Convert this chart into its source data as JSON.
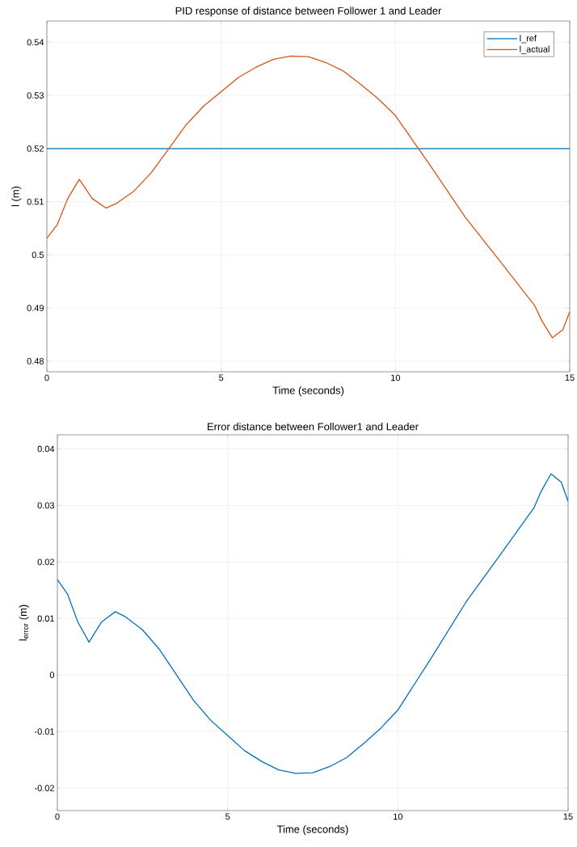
{
  "chart_data": [
    {
      "type": "line",
      "title": "PID response of distance between Follower 1 and Leader",
      "xlabel": "Time (seconds)",
      "ylabel": "l (m)",
      "xlim": [
        0,
        15
      ],
      "xticks": [
        0,
        5,
        10,
        15
      ],
      "ylim": [
        0.478,
        0.544
      ],
      "yticks": [
        0.48,
        0.49,
        0.5,
        0.51,
        0.52,
        0.53,
        0.54
      ],
      "grid": true,
      "legend": "top right",
      "series": [
        {
          "name": "l_ref",
          "color": "#0072bd",
          "x": [
            0,
            15
          ],
          "values": [
            0.52,
            0.52
          ]
        },
        {
          "name": "l_actual",
          "color": "#d95319",
          "x": [
            0,
            0.3,
            0.6,
            0.93,
            1.3,
            1.7,
            2,
            2.5,
            3,
            3.5,
            4,
            4.5,
            5,
            5.5,
            6,
            6.5,
            7,
            7.5,
            8,
            8.5,
            9,
            9.5,
            10,
            11,
            12,
            13,
            14,
            14.2,
            14.5,
            14.8,
            15
          ],
          "values": [
            0.5031,
            0.5057,
            0.5106,
            0.5142,
            0.5106,
            0.5088,
            0.5097,
            0.512,
            0.5155,
            0.52,
            0.5245,
            0.528,
            0.5307,
            0.5334,
            0.5353,
            0.5368,
            0.5374,
            0.5373,
            0.5362,
            0.5346,
            0.5321,
            0.5294,
            0.5262,
            0.5168,
            0.5071,
            0.4988,
            0.4904,
            0.4876,
            0.4844,
            0.4859,
            0.4893
          ]
        }
      ]
    },
    {
      "type": "line",
      "title": "Error distance between Follower1 and Leader",
      "xlabel": "Time (seconds)",
      "ylabel": "l$_{error}$ (m)",
      "xlim": [
        0,
        15
      ],
      "xticks": [
        0,
        5,
        10,
        15
      ],
      "ylim": [
        -0.024,
        0.0425
      ],
      "yticks": [
        -0.02,
        -0.01,
        0,
        0.01,
        0.02,
        0.03,
        0.04
      ],
      "grid": true,
      "series": [
        {
          "color": "#0072bd",
          "x": [
            0,
            0.3,
            0.6,
            0.93,
            1.3,
            1.7,
            2,
            2.5,
            3,
            3.5,
            4,
            4.5,
            5,
            5.5,
            6,
            6.5,
            7,
            7.5,
            8,
            8.5,
            9,
            9.5,
            10,
            11,
            12,
            13,
            14,
            14.2,
            14.5,
            14.8,
            15
          ],
          "values": [
            0.0169,
            0.0143,
            0.0094,
            0.0058,
            0.0094,
            0.0112,
            0.0103,
            0.008,
            0.0045,
            0,
            -0.0045,
            -0.008,
            -0.0107,
            -0.0134,
            -0.0153,
            -0.0168,
            -0.0174,
            -0.0173,
            -0.0162,
            -0.0146,
            -0.0121,
            -0.0094,
            -0.0062,
            0.0032,
            0.0129,
            0.0212,
            0.0296,
            0.0324,
            0.0356,
            0.0341,
            0.0307
          ]
        }
      ]
    }
  ]
}
